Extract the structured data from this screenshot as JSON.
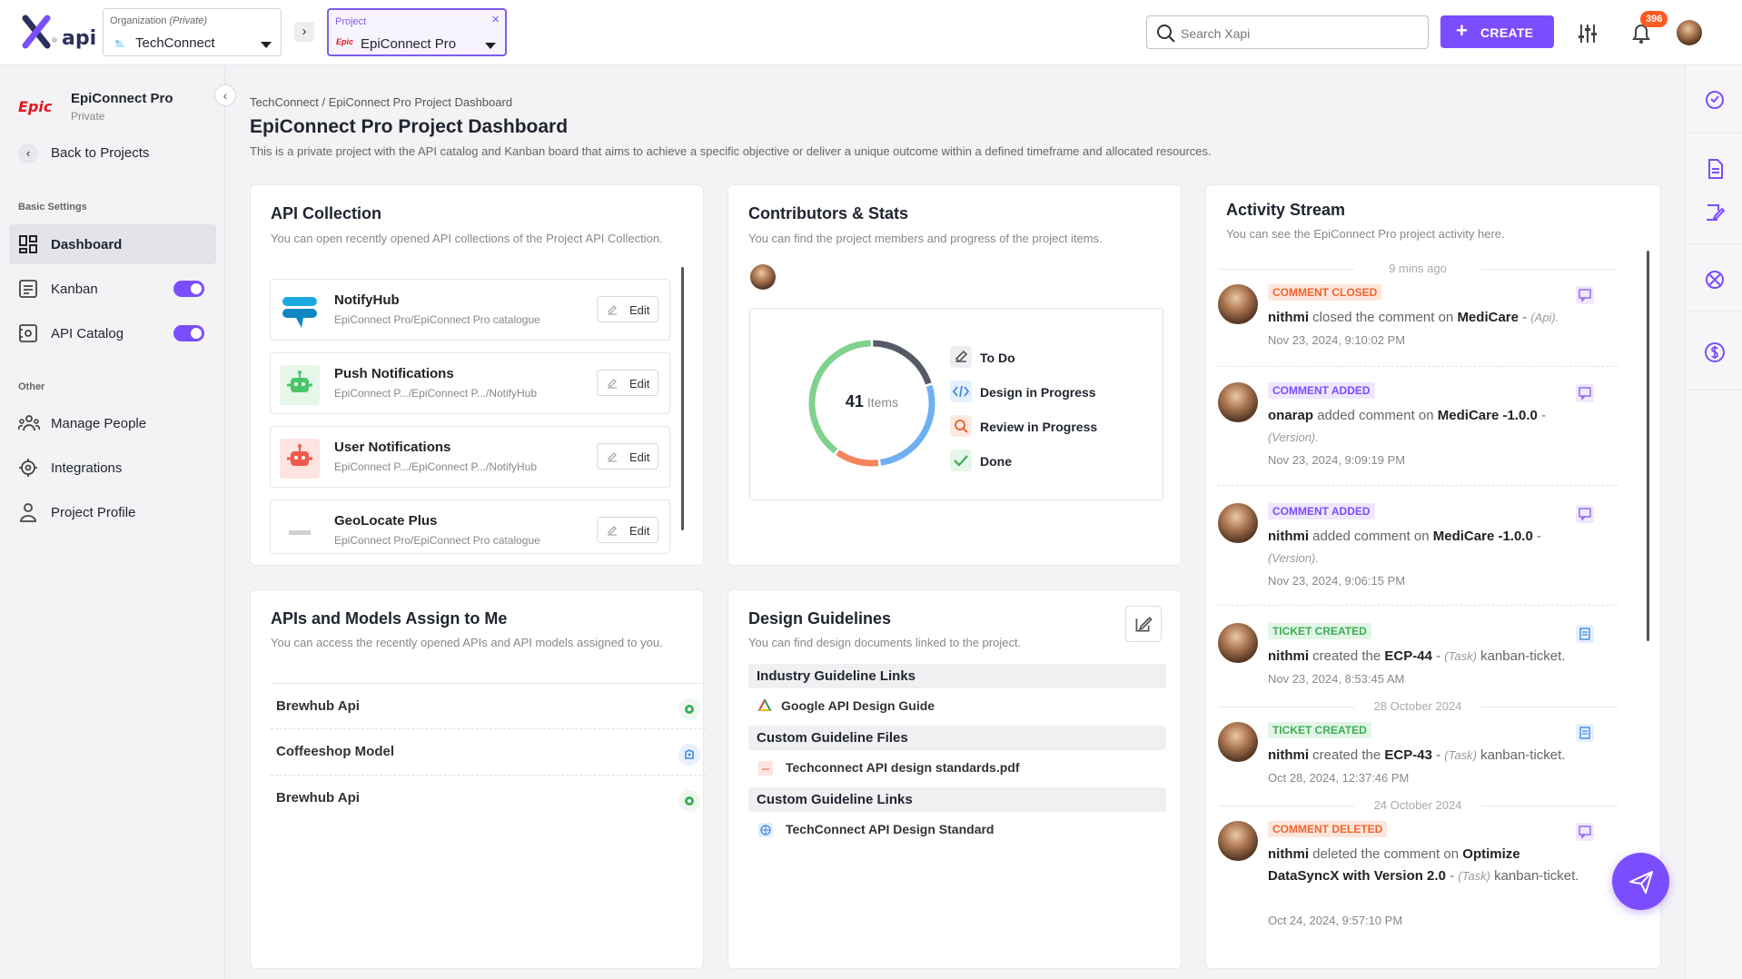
{
  "app": {
    "logo_text": "api"
  },
  "topbar": {
    "org_label": "Organization",
    "org_private": "(Private)",
    "org_value": "TechConnect",
    "project_label": "Project",
    "project_value": "EpiConnect Pro",
    "project_logo_text": "Epic",
    "search_placeholder": "Search Xapi",
    "create_label": "CREATE",
    "notification_count": "396"
  },
  "sidebar": {
    "project_name": "EpiConnect Pro",
    "project_visibility": "Private",
    "project_logo_text": "Epic",
    "back_label": "Back to Projects",
    "section_basic": "Basic Settings",
    "section_other": "Other",
    "items": [
      {
        "label": "Dashboard",
        "icon": "dashboard-icon",
        "active": true
      },
      {
        "label": "Kanban",
        "icon": "kanban-icon",
        "toggle": true
      },
      {
        "label": "API Catalog",
        "icon": "api-catalog-icon",
        "toggle": true
      },
      {
        "label": "Manage People",
        "icon": "people-icon"
      },
      {
        "label": "Integrations",
        "icon": "integrations-icon"
      },
      {
        "label": "Project Profile",
        "icon": "user-icon"
      }
    ]
  },
  "page": {
    "breadcrumb": "TechConnect / EpiConnect Pro Project Dashboard",
    "title": "EpiConnect Pro Project Dashboard",
    "description": "This is a private project with the API catalog and Kanban board that aims to achieve a specific objective or deliver a unique outcome within a defined timeframe and allocated resources."
  },
  "api_collection": {
    "title": "API Collection",
    "description": "You can open recently opened API collections of the Project API Collection.",
    "edit_label": "Edit",
    "items": [
      {
        "name": "NotifyHub",
        "path": "EpiConnect Pro/EpiConnect Pro catalogue",
        "icon": "notifyhub-icon"
      },
      {
        "name": "Push Notifications",
        "path": "EpiConnect P.../EpiConnect P.../NotifyHub",
        "icon": "robot-green-icon"
      },
      {
        "name": "User Notifications",
        "path": "EpiConnect P.../EpiConnect P.../NotifyHub",
        "icon": "robot-red-icon"
      },
      {
        "name": "GeoLocate Plus",
        "path": "EpiConnect Pro/EpiConnect Pro catalogue",
        "icon": "geolocate-icon"
      }
    ]
  },
  "contributors": {
    "title": "Contributors & Stats",
    "description": "You can find the project members and progress of the project items.",
    "total": "41",
    "total_label": "Items",
    "legend": [
      {
        "label": "To Do",
        "icon": "todo-icon",
        "color": "#555a66"
      },
      {
        "label": "Design in Progress",
        "icon": "code-icon",
        "color": "#6fb0f2"
      },
      {
        "label": "Review in Progress",
        "icon": "search-icon",
        "color": "#f4845a"
      },
      {
        "label": "Done",
        "icon": "check-icon",
        "color": "#7fd18d"
      }
    ],
    "segments": [
      {
        "name": "To Do",
        "fraction": 0.2,
        "color": "#555a66"
      },
      {
        "name": "Design in Progress",
        "fraction": 0.28,
        "color": "#6fb0f2"
      },
      {
        "name": "Review in Progress",
        "fraction": 0.12,
        "color": "#f4845a"
      },
      {
        "name": "Done",
        "fraction": 0.4,
        "color": "#7fd18d"
      }
    ]
  },
  "assigned": {
    "title": "APIs and Models Assign to Me",
    "description": "You can access the recently opened APIs and API models assigned to you.",
    "items": [
      {
        "name": "Brewhub Api",
        "icon": "api-gear-icon"
      },
      {
        "name": "Coffeeshop Model",
        "icon": "model-icon"
      },
      {
        "name": "Brewhub Api",
        "icon": "api-gear-icon"
      }
    ]
  },
  "guidelines": {
    "title": "Design Guidelines",
    "description": "You can find design documents linked to the project.",
    "sections": [
      {
        "heading": "Industry Guideline Links",
        "items": [
          {
            "label": "Google API Design Guide",
            "icon": "google-icon"
          }
        ]
      },
      {
        "heading": "Custom Guideline Files",
        "items": [
          {
            "label": "Techconnect API design standards.pdf",
            "icon": "pdf-icon"
          }
        ]
      },
      {
        "heading": "Custom Guideline Links",
        "items": [
          {
            "label": "TechConnect API Design Standard",
            "icon": "globe-icon"
          }
        ]
      }
    ]
  },
  "activity": {
    "title": "Activity Stream",
    "description": "You can see the EpiConnect Pro project activity here.",
    "day_labels": [
      "9 mins ago",
      "28 October 2024",
      "24 October 2024"
    ],
    "events": [
      {
        "tag": "COMMENT CLOSED",
        "tag_color": "#f4845a",
        "user": "nithmi",
        "action": "closed the comment on",
        "target": "MediCare",
        "suffix": "(Api).",
        "date": "Nov 23, 2024, 9:10:02 PM"
      },
      {
        "tag": "COMMENT ADDED",
        "tag_color": "#8a63f5",
        "user": "onarap",
        "action": "added comment on",
        "target": "MediCare -1.0.0",
        "suffix": "(Version).",
        "date": "Nov 23, 2024, 9:09:19 PM"
      },
      {
        "tag": "COMMENT ADDED",
        "tag_color": "#8a63f5",
        "user": "nithmi",
        "action": "added comment on",
        "target": "MediCare -1.0.0",
        "suffix": "(Version).",
        "date": "Nov 23, 2024, 9:06:15 PM"
      },
      {
        "tag": "TICKET CREATED",
        "tag_color": "#3cae57",
        "user": "nithmi",
        "action": "created the",
        "target": "ECP-44",
        "suffix": "(Task)",
        "tail": "kanban-ticket.",
        "date": "Nov 23, 2024, 8:53:45 AM"
      },
      {
        "tag": "TICKET CREATED",
        "tag_color": "#3cae57",
        "user": "nithmi",
        "action": "created the",
        "target": "ECP-43",
        "suffix": "(Task)",
        "tail": "kanban-ticket.",
        "date": "Oct 28, 2024, 12:37:46 PM"
      },
      {
        "tag": "COMMENT DELETED",
        "tag_color": "#f4845a",
        "user": "nithmi",
        "action": "deleted the comment on",
        "target": "Optimize DataSyncX with Version 2.0",
        "suffix": "(Task)",
        "tail": "kanban-ticket.",
        "date": "Oct 24, 2024, 9:57:10 PM"
      }
    ]
  },
  "rightbar": {
    "icons": [
      "sync-icon",
      "document-icon",
      "edit-note-icon",
      "network-icon",
      "dollar-icon"
    ]
  }
}
